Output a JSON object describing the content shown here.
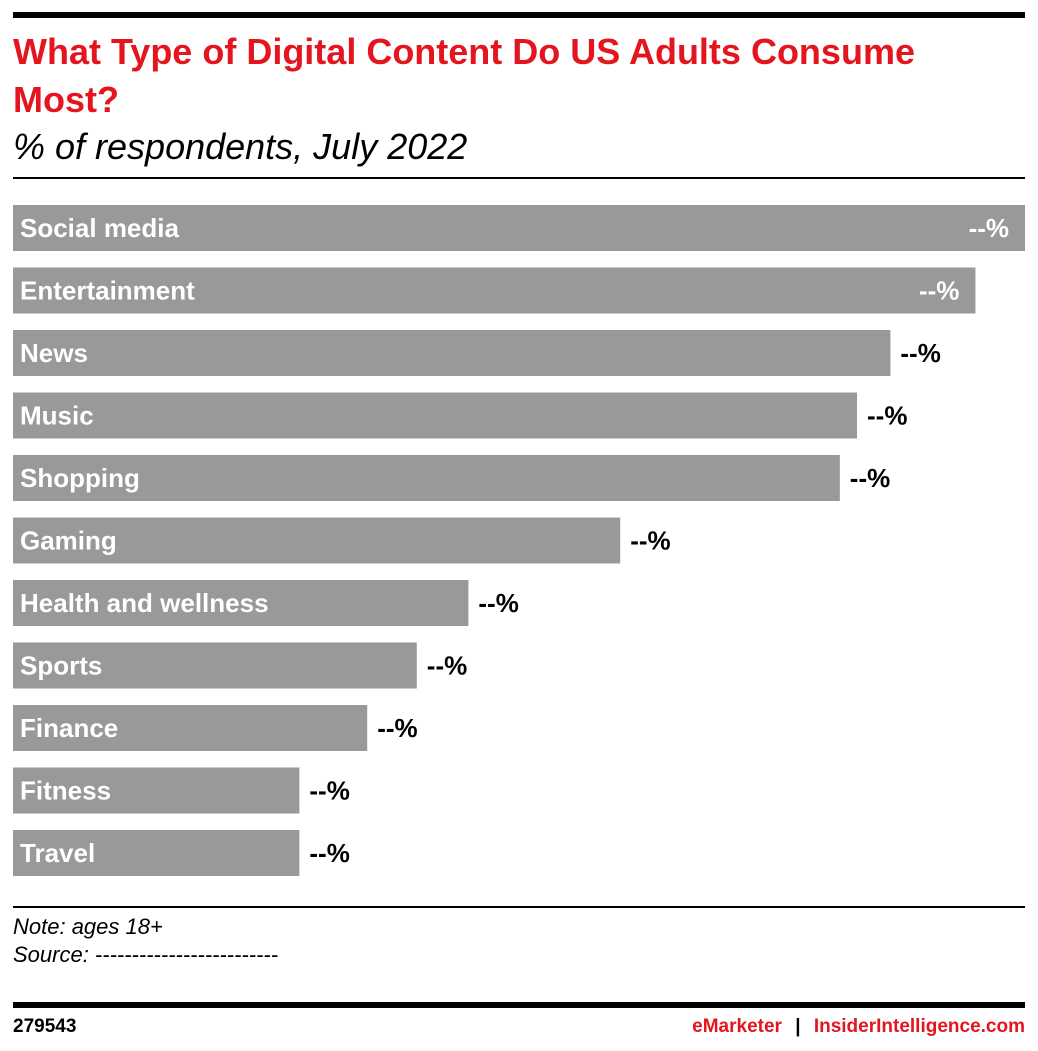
{
  "chart_data": {
    "type": "bar",
    "orientation": "horizontal",
    "title": "What Type of Digital Content Do US Adults Consume Most?",
    "subtitle": "% of respondents, July 2022",
    "categories": [
      "Social media",
      "Entertainment",
      "News",
      "Music",
      "Shopping",
      "Gaming",
      "Health and wellness",
      "Sports",
      "Finance",
      "Fitness",
      "Travel"
    ],
    "values": [
      100,
      95.1,
      86.7,
      83.4,
      81.7,
      60.0,
      45.0,
      39.9,
      35.0,
      28.3,
      28.3
    ],
    "value_units": "relative bar length (% of largest bar); printed values are hidden",
    "data_labels": [
      "--%",
      "--%",
      "--%",
      "--%",
      "--%",
      "--%",
      "--%",
      "--%",
      "--%",
      "--%",
      "--%"
    ],
    "bar_color": "#999999",
    "grid": false,
    "legend": "none"
  },
  "note": "Note: ages 18+",
  "source": "Source: -------------------------",
  "footer": {
    "id": "279543",
    "brand1": "eMarketer",
    "separator": "|",
    "brand2": "InsiderIntelligence.com",
    "brand_color": "#e4151f"
  }
}
